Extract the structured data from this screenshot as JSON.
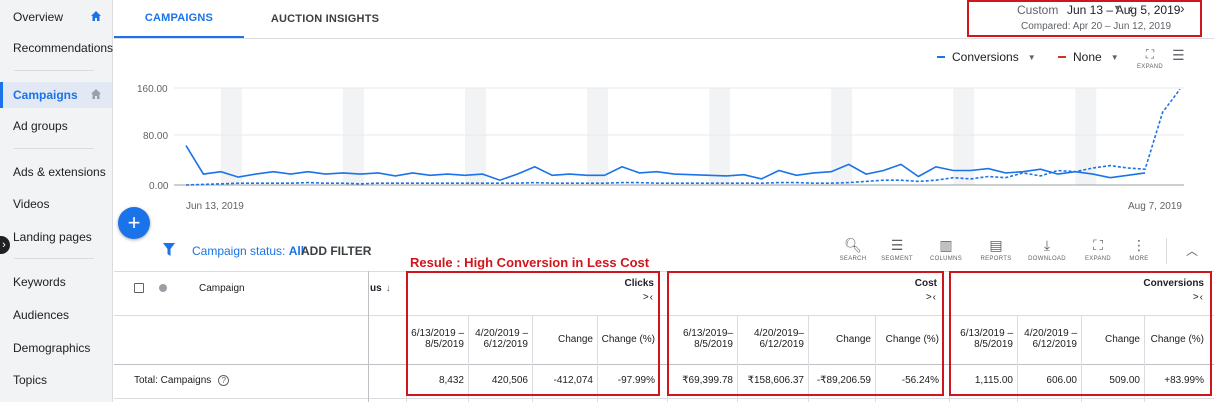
{
  "sidebar": {
    "items": [
      {
        "label": "Overview",
        "home": true
      },
      {
        "label": "Recommendations"
      },
      {
        "label": "Campaigns",
        "home": true,
        "active": true
      },
      {
        "label": "Ad groups"
      },
      {
        "label": "Ads & extensions"
      },
      {
        "label": "Videos"
      },
      {
        "label": "Landing pages"
      },
      {
        "label": "Keywords"
      },
      {
        "label": "Audiences"
      },
      {
        "label": "Demographics"
      },
      {
        "label": "Topics"
      }
    ],
    "toggle_icon": "chevron-right-icon"
  },
  "tabs": [
    {
      "label": "CAMPAIGNS",
      "active": true
    },
    {
      "label": "AUCTION INSIGHTS",
      "active": false
    }
  ],
  "date_range": {
    "custom_label": "Custom",
    "range": "Jun 13 – Aug 5, 2019",
    "compared": "Compared: Apr 20 – Jun 12, 2019"
  },
  "chart_controls": {
    "metric1": {
      "label": "Conversions",
      "color": "#1a73e8"
    },
    "metric2": {
      "label": "None",
      "color": "#d93025"
    },
    "expand_label": "EXPAND"
  },
  "chart_data": {
    "type": "line",
    "ylim": [
      0,
      160
    ],
    "yticks": [
      "160.00",
      "80.00",
      "0.00"
    ],
    "xticks": [
      "Jun 13, 2019",
      "Aug 7, 2019"
    ],
    "series": [
      {
        "style": "solid",
        "values": [
          65,
          18,
          22,
          13,
          18,
          22,
          18,
          22,
          18,
          20,
          18,
          20,
          15,
          20,
          16,
          18,
          16,
          18,
          8,
          18,
          30,
          16,
          18,
          16,
          16,
          30,
          20,
          22,
          18,
          17,
          16,
          15,
          17,
          10,
          24,
          16,
          20,
          22,
          34,
          18,
          24,
          34,
          14,
          30,
          24,
          24,
          27,
          20,
          22,
          26,
          18,
          22,
          18,
          12,
          16,
          20
        ]
      },
      {
        "style": "dashed",
        "values": [
          0,
          1,
          2,
          3,
          3,
          3,
          3,
          4,
          3,
          3,
          2,
          3,
          3,
          3,
          3,
          3,
          3,
          3,
          3,
          3,
          4,
          3,
          3,
          3,
          3,
          4,
          4,
          3,
          3,
          3,
          3,
          3,
          3,
          3,
          4,
          4,
          3,
          3,
          4,
          6,
          8,
          8,
          6,
          8,
          12,
          10,
          14,
          12,
          20,
          15,
          24,
          22,
          28,
          32,
          28,
          26,
          120,
          158
        ]
      }
    ]
  },
  "fab_label": "+",
  "filter": {
    "status_prefix": "Campaign status:",
    "status_value": "All",
    "add_filter": "ADD FILTER"
  },
  "tools": [
    {
      "label": "SEARCH",
      "icon": "search-icon"
    },
    {
      "label": "SEGMENT",
      "icon": "segment-icon"
    },
    {
      "label": "COLUMNS",
      "icon": "columns-icon"
    },
    {
      "label": "REPORTS",
      "icon": "reports-icon"
    },
    {
      "label": "DOWNLOAD",
      "icon": "download-icon"
    },
    {
      "label": "EXPAND",
      "icon": "expand-icon"
    },
    {
      "label": "MORE",
      "icon": "more-icon"
    }
  ],
  "annotation": "Resule : High Conversion  in Less Cost",
  "table": {
    "campaign_header": "Campaign",
    "status_header_fragment": "us",
    "groups": [
      {
        "title": "Clicks",
        "arrows": ">‹"
      },
      {
        "title": "Cost",
        "arrows": ">‹"
      },
      {
        "title": "Conversions",
        "arrows": ">‹"
      }
    ],
    "clicks_cols": [
      "6/13/2019 –8/5/2019",
      "4/20/2019 – 6/12/2019",
      "Change",
      "Change (%)"
    ],
    "cost_cols": [
      "6/13/2019– 8/5/2019",
      "4/20/2019– 6/12/2019",
      "Change",
      "Change (%)"
    ],
    "conv_cols": [
      "6/13/2019 –8/5/2019",
      "4/20/2019 – 6/12/2019",
      "Change",
      "Change (%)"
    ],
    "total_label": "Total: Campaigns",
    "total": {
      "clicks": [
        "8,432",
        "420,506",
        "-412,074",
        "-97.99%"
      ],
      "cost": [
        "₹69,399.78",
        "₹158,606.37",
        "-₹89,206.59",
        "-56.24%"
      ],
      "conversions": [
        "1,115.00",
        "606.00",
        "509.00",
        "+83.99%"
      ]
    }
  }
}
